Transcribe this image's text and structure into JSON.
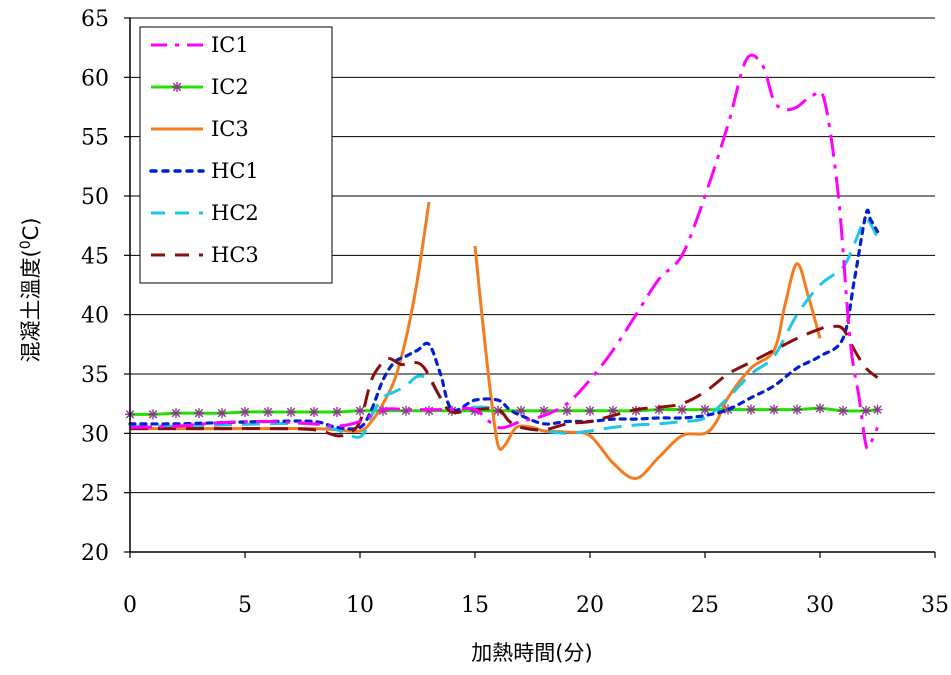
{
  "chart_data": {
    "type": "line",
    "title": "",
    "xlabel": "加熱時間(分)",
    "ylabel": "混凝土溫度(",
    "ylabel_sup": "0",
    "ylabel_suffix": "C)",
    "xlim": [
      0,
      35
    ],
    "ylim": [
      20,
      65
    ],
    "xticks": [
      "0",
      "5",
      "10",
      "15",
      "20",
      "25",
      "30",
      "35"
    ],
    "yticks": [
      "20",
      "25",
      "30",
      "35",
      "40",
      "45",
      "50",
      "55",
      "60",
      "65"
    ],
    "grid": "horizontal",
    "legend_position": "top-left",
    "series": [
      {
        "name": "IC1",
        "color": "#ff00ff",
        "dash": "dashdot",
        "marker": "none",
        "x": [
          0,
          2,
          4,
          6,
          8,
          9,
          10,
          11,
          12,
          13,
          14,
          15,
          16,
          17,
          18,
          19,
          20,
          21,
          22,
          23,
          24,
          25,
          26,
          26.8,
          27.5,
          28,
          28.5,
          29,
          29.7,
          30.2,
          30.8,
          31.3,
          31.7,
          32,
          32.2,
          32.5
        ],
        "y": [
          30.5,
          30.6,
          30.9,
          31.0,
          30.8,
          30.6,
          31.0,
          32.0,
          32.0,
          32.0,
          32.0,
          32.0,
          30.5,
          31.0,
          31.5,
          32.5,
          34.5,
          37.0,
          40.0,
          43.0,
          45.0,
          50.0,
          56.0,
          61.5,
          61.0,
          58.0,
          57.3,
          57.5,
          58.5,
          58.0,
          50.0,
          38.0,
          33.0,
          29.0,
          29.2,
          30.5
        ]
      },
      {
        "name": "IC2",
        "color": "#22e000",
        "dash": "solid",
        "marker": "star",
        "x": [
          0,
          1,
          2,
          3,
          4,
          5,
          6,
          7,
          8,
          9,
          10,
          11,
          12,
          13,
          14,
          15,
          16,
          17,
          18,
          19,
          20,
          21,
          22,
          23,
          24,
          25,
          26,
          27,
          28,
          29,
          30,
          31,
          32,
          32.5
        ],
        "y": [
          31.6,
          31.6,
          31.7,
          31.7,
          31.7,
          31.8,
          31.8,
          31.8,
          31.8,
          31.8,
          31.9,
          31.9,
          31.9,
          31.9,
          31.9,
          31.9,
          31.9,
          31.9,
          31.9,
          31.9,
          31.9,
          31.9,
          31.9,
          32.0,
          32.0,
          32.0,
          32.0,
          32.0,
          32.0,
          32.0,
          32.1,
          31.9,
          31.9,
          32.0
        ]
      },
      {
        "name": "IC3",
        "color": "#f57c1e",
        "dash": "solid",
        "marker": "none",
        "segments": [
          {
            "x": [
              0,
              2,
              4,
              6,
              8,
              9,
              10,
              10.5,
              11,
              11.5,
              12,
              12.5,
              13
            ],
            "y": [
              30.4,
              30.4,
              30.4,
              30.4,
              30.4,
              30.3,
              30.2,
              31.0,
              32.5,
              34.5,
              38.0,
              43.0,
              49.5
            ]
          },
          {
            "x": [
              15,
              15.3,
              15.7,
              16,
              16.3,
              16.8,
              17.5,
              18,
              19,
              20,
              21,
              22,
              23,
              24,
              25,
              25.5,
              26,
              27,
              28,
              28.5,
              29,
              29.5,
              30
            ],
            "y": [
              45.8,
              40.0,
              33.0,
              29.0,
              29.0,
              30.5,
              30.5,
              30.2,
              30.1,
              29.8,
              27.5,
              26.2,
              28.0,
              29.8,
              30.0,
              31.0,
              33.0,
              35.5,
              37.0,
              41.0,
              44.3,
              41.5,
              38.0
            ]
          }
        ]
      },
      {
        "name": "HC1",
        "color": "#0020d0",
        "dash": "dot",
        "marker": "none",
        "x": [
          0,
          2,
          4,
          6,
          8,
          9,
          10,
          10.5,
          11,
          11.5,
          12,
          12.5,
          13,
          13.5,
          14,
          15,
          16,
          16.5,
          17,
          18,
          19,
          20,
          21,
          22,
          23,
          24,
          25,
          26,
          27,
          28,
          29,
          30,
          31,
          31.5,
          32,
          32.2,
          32.5
        ],
        "y": [
          30.8,
          30.8,
          30.9,
          31.0,
          31.0,
          30.5,
          30.5,
          32.0,
          34.5,
          36.0,
          36.5,
          37.0,
          37.5,
          35.0,
          32.0,
          32.8,
          32.8,
          32.0,
          31.5,
          30.8,
          31.0,
          31.0,
          31.2,
          31.2,
          31.3,
          31.3,
          31.5,
          32.0,
          33.0,
          34.0,
          35.5,
          36.5,
          38.0,
          43.0,
          48.5,
          48.0,
          47.0
        ]
      },
      {
        "name": "HC2",
        "color": "#1ec6e8",
        "dash": "dash",
        "marker": "none",
        "x": [
          0,
          2,
          4,
          6,
          8,
          9,
          10,
          10.5,
          11,
          11.5,
          12,
          12.5,
          13,
          13.5,
          14,
          15,
          16,
          16.5,
          17,
          18,
          19,
          20,
          21,
          22,
          23,
          24,
          25,
          26,
          27,
          28,
          29,
          30,
          31,
          31.5,
          32,
          32.5
        ],
        "y": [
          30.6,
          30.6,
          30.7,
          30.8,
          30.8,
          30.3,
          29.7,
          31.5,
          33.0,
          33.5,
          34.0,
          34.8,
          34.5,
          33.0,
          31.8,
          32.2,
          32.0,
          31.0,
          30.5,
          30.2,
          30.0,
          30.2,
          30.5,
          30.7,
          30.8,
          31.0,
          31.3,
          33.0,
          35.0,
          36.5,
          40.0,
          42.5,
          44.0,
          46.0,
          48.0,
          46.5
        ]
      },
      {
        "name": "HC3",
        "color": "#8b0e0e",
        "dash": "dash",
        "marker": "none",
        "x": [
          0,
          2,
          4,
          6,
          8,
          9,
          9.5,
          10,
          10.5,
          11,
          11.3,
          11.8,
          12.3,
          12.8,
          13.5,
          14,
          15,
          16,
          16.5,
          17,
          18,
          19,
          20,
          21,
          22,
          23,
          24,
          25,
          26,
          27,
          28,
          29,
          30,
          30.5,
          31,
          31.5,
          32,
          32.5
        ],
        "y": [
          30.4,
          30.4,
          30.4,
          30.4,
          30.3,
          29.8,
          30.0,
          31.0,
          34.5,
          36.0,
          36.3,
          35.8,
          36.0,
          35.5,
          33.0,
          31.8,
          32.0,
          32.0,
          31.0,
          30.5,
          30.3,
          30.8,
          31.0,
          31.5,
          32.0,
          32.2,
          32.5,
          33.5,
          35.0,
          36.0,
          37.0,
          38.0,
          38.8,
          39.0,
          38.8,
          37.0,
          35.5,
          34.7
        ]
      }
    ]
  }
}
